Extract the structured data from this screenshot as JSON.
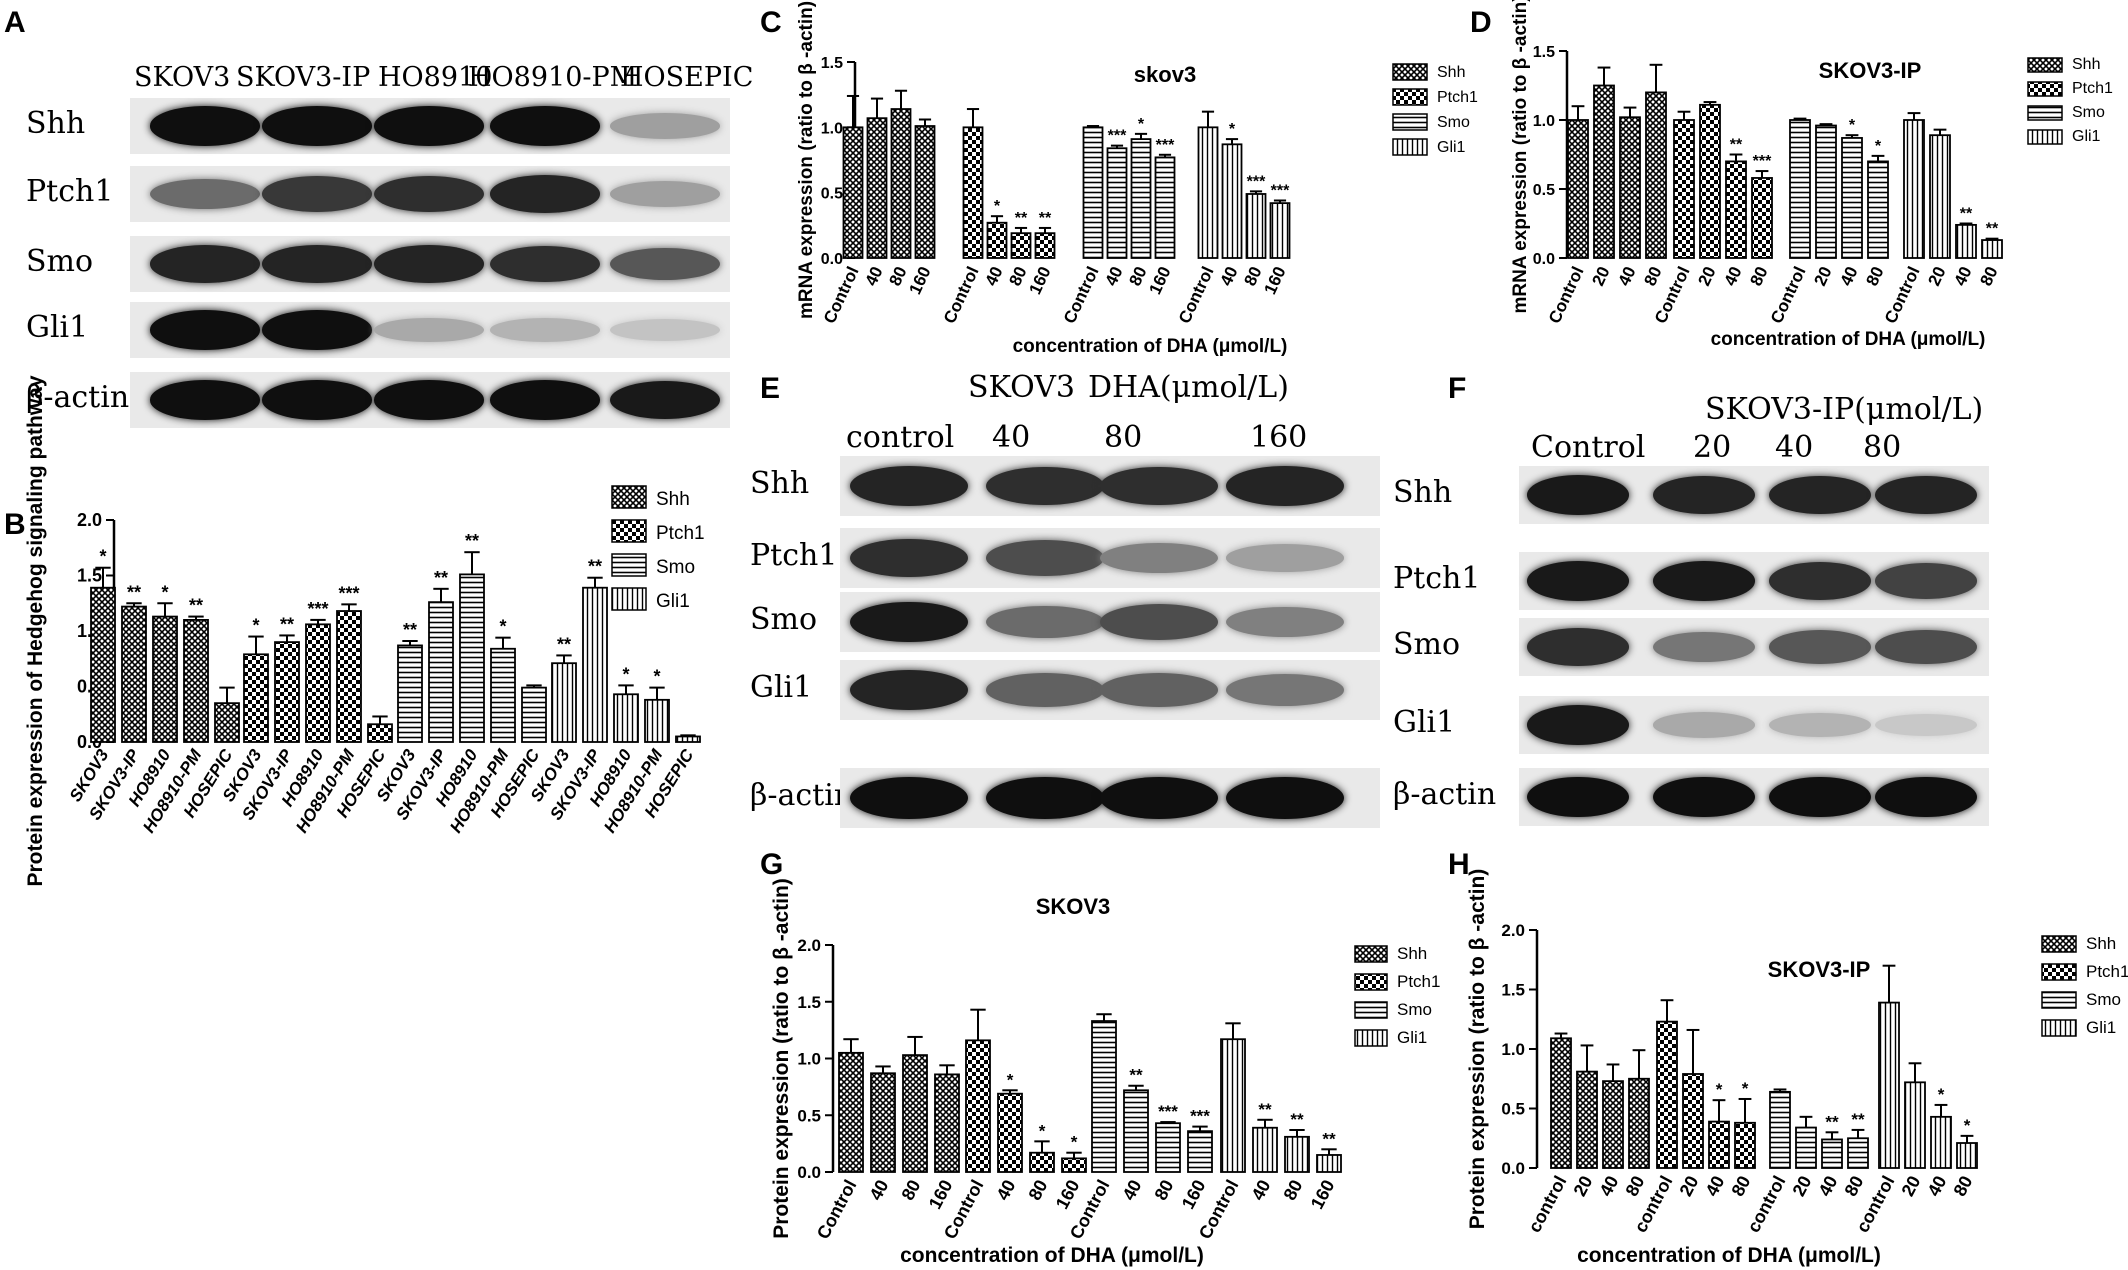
{
  "panel_labels": {
    "A": "A",
    "B": "B",
    "C": "C",
    "D": "D",
    "E": "E",
    "F": "F",
    "G": "G",
    "H": "H"
  },
  "colors": {
    "ink": "#000000",
    "blot_bg": "#e9e9e9",
    "band": "#111111"
  },
  "blotA": {
    "lanes": [
      "SKOV3",
      "SKOV3-IP",
      "HO8910",
      "HO8910-PM",
      "HOSEPIC"
    ],
    "rows": [
      {
        "name": "Shh",
        "intensity": [
          1.0,
          1.0,
          1.0,
          1.0,
          0.3
        ]
      },
      {
        "name": "Ptch1",
        "intensity": [
          0.55,
          0.8,
          0.85,
          0.9,
          0.3
        ]
      },
      {
        "name": "Smo",
        "intensity": [
          0.9,
          0.9,
          0.9,
          0.85,
          0.65
        ]
      },
      {
        "name": "Gli1",
        "intensity": [
          1.0,
          1.0,
          0.25,
          0.2,
          0.12
        ]
      },
      {
        "name": "β-actin",
        "intensity": [
          1.0,
          1.0,
          1.0,
          1.0,
          0.95
        ]
      }
    ]
  },
  "blotE": {
    "title_left": "SKOV3",
    "title_right": "DHA(μmol/L)",
    "lanes": [
      "control",
      "40",
      "80",
      "160"
    ],
    "rows": [
      {
        "name": "Shh",
        "intensity": [
          0.9,
          0.85,
          0.85,
          0.9
        ]
      },
      {
        "name": "Ptch1",
        "intensity": [
          0.85,
          0.7,
          0.45,
          0.3
        ]
      },
      {
        "name": "Smo",
        "intensity": [
          0.95,
          0.55,
          0.7,
          0.45
        ]
      },
      {
        "name": "Gli1",
        "intensity": [
          0.9,
          0.6,
          0.6,
          0.5
        ]
      },
      {
        "name": "β-actin",
        "intensity": [
          1.0,
          1.0,
          1.0,
          1.0
        ]
      }
    ]
  },
  "blotF": {
    "title": "SKOV3-IP(μmol/L)",
    "lanes": [
      "Control",
      "20",
      "40",
      "80"
    ],
    "rows": [
      {
        "name": "Shh",
        "intensity": [
          0.95,
          0.9,
          0.9,
          0.9
        ]
      },
      {
        "name": "Ptch1",
        "intensity": [
          0.95,
          0.95,
          0.85,
          0.75
        ]
      },
      {
        "name": "Smo",
        "intensity": [
          0.85,
          0.5,
          0.65,
          0.7
        ]
      },
      {
        "name": "Gli1",
        "intensity": [
          0.95,
          0.25,
          0.2,
          0.1
        ]
      },
      {
        "name": "β-actin",
        "intensity": [
          1.0,
          1.0,
          1.0,
          1.0
        ]
      }
    ]
  },
  "chart_data": [
    {
      "id": "B",
      "type": "bar",
      "ylabel": "Protein expression of Hedgehog signaling pathway",
      "xlabel": "",
      "ylim": [
        0,
        2.0
      ],
      "yticks": [
        "0.0",
        "0.5",
        "1.0",
        "1.5",
        "2.0"
      ],
      "categories": [
        "SKOV3",
        "SKOV3-IP",
        "HO8910",
        "HO8910-PM",
        "HOSEPIC"
      ],
      "series": [
        {
          "name": "Shh",
          "values": [
            1.39,
            1.22,
            1.13,
            1.1,
            0.35
          ],
          "errors": [
            0.18,
            0.03,
            0.12,
            0.03,
            0.14
          ],
          "sig": [
            "*",
            "**",
            "*",
            "**",
            ""
          ]
        },
        {
          "name": "Ptch1",
          "values": [
            0.79,
            0.9,
            1.06,
            1.18,
            0.16
          ],
          "errors": [
            0.16,
            0.06,
            0.04,
            0.06,
            0.07
          ],
          "sig": [
            "*",
            "**",
            "***",
            "***",
            ""
          ]
        },
        {
          "name": "Smo",
          "values": [
            0.87,
            1.26,
            1.51,
            0.84,
            0.49
          ],
          "errors": [
            0.04,
            0.12,
            0.2,
            0.1,
            0.02
          ],
          "sig": [
            "**",
            "**",
            "**",
            "*",
            ""
          ]
        },
        {
          "name": "Gli1",
          "values": [
            0.71,
            1.39,
            0.43,
            0.38,
            0.05
          ],
          "errors": [
            0.07,
            0.09,
            0.08,
            0.11,
            0.01
          ],
          "sig": [
            "**",
            "**",
            "*",
            "*",
            ""
          ]
        }
      ],
      "legend": "right"
    },
    {
      "id": "C",
      "type": "bar",
      "title": "skov3",
      "ylabel": "mRNA expression (ratio to β -actin)",
      "xlabel": "concentration of DHA (μmol/L)",
      "ylim": [
        0,
        1.5
      ],
      "yticks": [
        "0.0",
        "0.5",
        "1.0",
        "1.5"
      ],
      "categories": [
        "Control",
        "40",
        "80",
        "160"
      ],
      "series": [
        {
          "name": "Shh",
          "values": [
            1.0,
            1.07,
            1.14,
            1.01
          ],
          "errors": [
            0.24,
            0.15,
            0.14,
            0.05
          ],
          "sig": [
            "",
            "",
            "",
            ""
          ]
        },
        {
          "name": "Ptch1",
          "values": [
            1.0,
            0.27,
            0.19,
            0.19
          ],
          "errors": [
            0.14,
            0.05,
            0.04,
            0.04
          ],
          "sig": [
            "",
            "*",
            "**",
            "**"
          ]
        },
        {
          "name": "Smo",
          "values": [
            1.0,
            0.84,
            0.91,
            0.77
          ],
          "errors": [
            0.01,
            0.02,
            0.04,
            0.02
          ],
          "sig": [
            "",
            "***",
            "*",
            "***"
          ]
        },
        {
          "name": "Gli1",
          "values": [
            1.0,
            0.87,
            0.49,
            0.42
          ],
          "errors": [
            0.12,
            0.04,
            0.02,
            0.02
          ],
          "sig": [
            "",
            "*",
            "***",
            "***"
          ]
        }
      ],
      "legend": "right"
    },
    {
      "id": "D",
      "type": "bar",
      "title": "SKOV3-IP",
      "ylabel": "mRNA expression (ratio to β -actin)",
      "xlabel": "concentration of DHA (μmol/L)",
      "ylim": [
        0,
        1.5
      ],
      "yticks": [
        "0.0",
        "0.5",
        "1.0",
        "1.5"
      ],
      "categories": [
        "Control",
        "20",
        "40",
        "80"
      ],
      "series": [
        {
          "name": "Shh",
          "values": [
            1.0,
            1.25,
            1.02,
            1.2
          ],
          "errors": [
            0.1,
            0.13,
            0.07,
            0.2
          ],
          "sig": [
            "",
            "",
            "",
            ""
          ]
        },
        {
          "name": "Ptch1",
          "values": [
            1.0,
            1.11,
            0.7,
            0.58
          ],
          "errors": [
            0.06,
            0.02,
            0.05,
            0.05
          ],
          "sig": [
            "",
            "",
            "**",
            "***"
          ]
        },
        {
          "name": "Smo",
          "values": [
            1.0,
            0.96,
            0.87,
            0.7
          ],
          "errors": [
            0.01,
            0.01,
            0.02,
            0.04
          ],
          "sig": [
            "",
            "",
            "*",
            "*"
          ]
        },
        {
          "name": "Gli1",
          "values": [
            1.0,
            0.89,
            0.24,
            0.13
          ],
          "errors": [
            0.05,
            0.04,
            0.01,
            0.01
          ],
          "sig": [
            "",
            "",
            "**",
            "**"
          ]
        }
      ],
      "legend": "right"
    },
    {
      "id": "G",
      "type": "bar",
      "title": "SKOV3",
      "ylabel": "Protein expression (ratio to β -actin)",
      "xlabel": "concentration of DHA (μmol/L)",
      "ylim": [
        0,
        2.0
      ],
      "yticks": [
        "0.0",
        "0.5",
        "1.0",
        "1.5",
        "2.0"
      ],
      "categories": [
        "Control",
        "40",
        "80",
        "160"
      ],
      "series": [
        {
          "name": "Shh",
          "values": [
            1.05,
            0.87,
            1.03,
            0.86
          ],
          "errors": [
            0.12,
            0.06,
            0.16,
            0.08
          ],
          "sig": [
            "",
            "",
            "",
            ""
          ]
        },
        {
          "name": "Ptch1",
          "values": [
            1.16,
            0.69,
            0.17,
            0.12
          ],
          "errors": [
            0.27,
            0.03,
            0.1,
            0.05
          ],
          "sig": [
            "",
            "*",
            "*",
            "*"
          ]
        },
        {
          "name": "Smo",
          "values": [
            1.33,
            0.72,
            0.43,
            0.36
          ],
          "errors": [
            0.06,
            0.04,
            0.01,
            0.04
          ],
          "sig": [
            "",
            "**",
            "***",
            "***"
          ]
        },
        {
          "name": "Gli1",
          "values": [
            1.17,
            0.39,
            0.31,
            0.15
          ],
          "errors": [
            0.14,
            0.07,
            0.06,
            0.05
          ],
          "sig": [
            "",
            "**",
            "**",
            "**"
          ]
        }
      ],
      "legend": "right"
    },
    {
      "id": "H",
      "type": "bar",
      "title": "SKOV3-IP",
      "ylabel": "Protein expression (ratio to β -actin)",
      "xlabel": "concentration of DHA (μmol/L)",
      "ylim": [
        0,
        2.0
      ],
      "yticks": [
        "0.0",
        "0.5",
        "1.0",
        "1.5",
        "2.0"
      ],
      "categories": [
        "control",
        "20",
        "40",
        "80"
      ],
      "series": [
        {
          "name": "Shh",
          "values": [
            1.09,
            0.81,
            0.73,
            0.75
          ],
          "errors": [
            0.04,
            0.22,
            0.14,
            0.24
          ],
          "sig": [
            "",
            "",
            "",
            ""
          ]
        },
        {
          "name": "Ptch1",
          "values": [
            1.23,
            0.79,
            0.39,
            0.38
          ],
          "errors": [
            0.18,
            0.37,
            0.18,
            0.2
          ],
          "sig": [
            "",
            "",
            "*",
            "*"
          ]
        },
        {
          "name": "Smo",
          "values": [
            0.64,
            0.34,
            0.24,
            0.25
          ],
          "errors": [
            0.02,
            0.09,
            0.06,
            0.07
          ],
          "sig": [
            "",
            "",
            "**",
            "**"
          ]
        },
        {
          "name": "Gli1",
          "values": [
            1.39,
            0.72,
            0.43,
            0.21
          ],
          "errors": [
            0.31,
            0.16,
            0.1,
            0.06
          ],
          "sig": [
            "",
            "",
            "*",
            "*"
          ]
        }
      ],
      "legend": "right"
    }
  ]
}
